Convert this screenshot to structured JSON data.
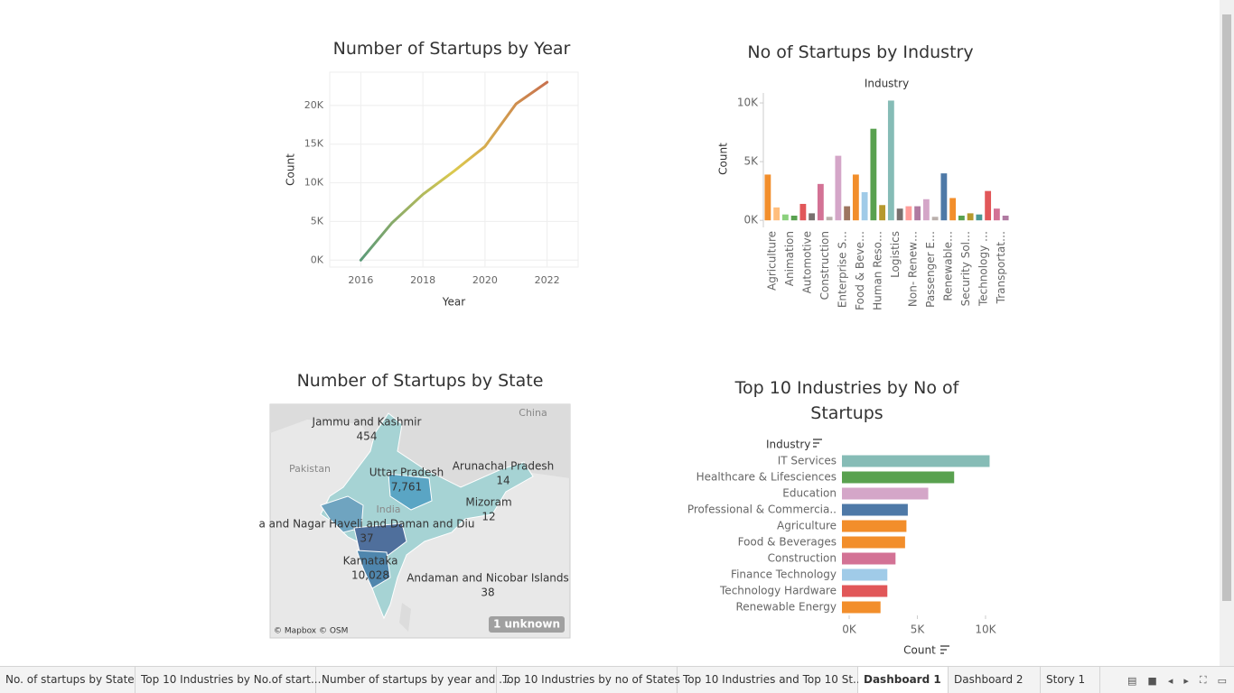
{
  "chart_data": [
    {
      "type": "line",
      "title": "Number of Startups by Year",
      "x_label": "Year",
      "y_label": "Count",
      "x": [
        2016,
        2017,
        2018,
        2019,
        2020,
        2021,
        2022
      ],
      "values": [
        0,
        4800,
        8500,
        11500,
        14700,
        20200,
        23000
      ],
      "colors": [
        "#5b9a78",
        "#dcc94e",
        "#c8714e"
      ],
      "xlim": [
        2015,
        2023
      ],
      "xticks": [
        2016,
        2018,
        2020,
        2022
      ],
      "ylim": [
        -900,
        24300
      ],
      "yticks": [
        {
          "value": 0,
          "label": "0K"
        },
        {
          "value": 5000,
          "label": "5K"
        },
        {
          "value": 10000,
          "label": "10K"
        },
        {
          "value": 15000,
          "label": "15K"
        },
        {
          "value": 20000,
          "label": "20K"
        }
      ],
      "grid": true
    },
    {
      "type": "bar",
      "title": "No of Startups by Industry",
      "x_label": "Industry",
      "y_label": "Count",
      "categories": [
        "Agriculture",
        null,
        "Animation",
        null,
        "Automotive",
        null,
        "Construction",
        null,
        "Enterprise S…",
        null,
        "Food & Beve…",
        null,
        "Human Reso…",
        null,
        "Logistics",
        null,
        "Non- Renew…",
        null,
        "Passenger E…",
        null,
        "Renewable…",
        null,
        "Security Sol…",
        null,
        "Technology …",
        null,
        "Transportat…",
        null
      ],
      "values": [
        3900,
        1100,
        500,
        400,
        1400,
        600,
        3100,
        300,
        5500,
        1200,
        3900,
        2400,
        7800,
        1300,
        10200,
        1000,
        1200,
        1200,
        1800,
        300,
        4000,
        1900,
        400,
        600,
        500,
        2500,
        1000,
        400
      ],
      "colors": [
        "#f28e2b",
        "#ffbe7d",
        "#8cd17d",
        "#59a14f",
        "#e15759",
        "#79706e",
        "#d37295",
        "#bab0ac",
        "#d4a6c8",
        "#9d7660",
        "#f28e2b",
        "#a0cbe8",
        "#59a14f",
        "#b6992d",
        "#86bcb6",
        "#79706e",
        "#ff9d9a",
        "#b07aa1",
        "#d4a6c8",
        "#bab0ac",
        "#4e79a7",
        "#f28e2b",
        "#59a14f",
        "#b6992d",
        "#499894",
        "#e15759",
        "#d37295",
        "#b07aa1"
      ],
      "ylim": [
        -600,
        10850
      ],
      "yticks": [
        {
          "value": 0,
          "label": "0K"
        },
        {
          "value": 5000,
          "label": "5K"
        },
        {
          "value": 10000,
          "label": "10K"
        }
      ]
    },
    {
      "type": "map",
      "title": "Number of Startups by State",
      "regions": [
        {
          "name": "Jammu and Kashmir",
          "value": 454
        },
        {
          "name": "Uttar Pradesh",
          "value": 7761,
          "value_label": "7,761"
        },
        {
          "name": "Arunachal Pradesh",
          "value": 14
        },
        {
          "name": "Mizoram",
          "value": 12
        },
        {
          "name": "a and Nagar Haveli and Daman and Diu",
          "value": 37
        },
        {
          "name": "Karnataka",
          "value": 10028,
          "value_label": "10,028"
        },
        {
          "name": "Andaman and Nicobar Islands",
          "value": 38
        }
      ],
      "places": [
        "China",
        "Pakistan",
        "India"
      ],
      "attribution": "© Mapbox © OSM",
      "unknown": "1 unknown"
    },
    {
      "type": "hbar",
      "title": "Top 10 Industries by No of Startups",
      "y_label": "Industry",
      "x_label": "Count",
      "categories": [
        "IT Services",
        "Healthcare & Lifesciences",
        "Education",
        "Professional & Commercia..",
        "Agriculture",
        "Food & Beverages",
        "Construction",
        "Finance Technology",
        "Technology Hardware",
        "Renewable Energy"
      ],
      "values": [
        10300,
        7700,
        5800,
        4300,
        4200,
        4100,
        3400,
        2800,
        2800,
        2300
      ],
      "colors": [
        "#86bcb6",
        "#59a14f",
        "#d4a6c8",
        "#4e79a7",
        "#f28e2b",
        "#f28e2b",
        "#d37295",
        "#a0cbe8",
        "#e15759",
        "#f28e2b"
      ],
      "xlim": [
        -530,
        10600
      ],
      "xticks": [
        {
          "value": 0,
          "label": "0K"
        },
        {
          "value": 5000,
          "label": "5K"
        },
        {
          "value": 10000,
          "label": "10K"
        }
      ]
    }
  ],
  "tabs": [
    "No. of startups by State",
    "Top 10 Industries by No.of start...",
    "Number of startups by year and ...",
    "Top 10 Industries by no of States",
    "Top 10 Industries and Top 10 St...",
    "Dashboard 1",
    "Dashboard 2",
    "Story 1"
  ],
  "active_tab": 5
}
